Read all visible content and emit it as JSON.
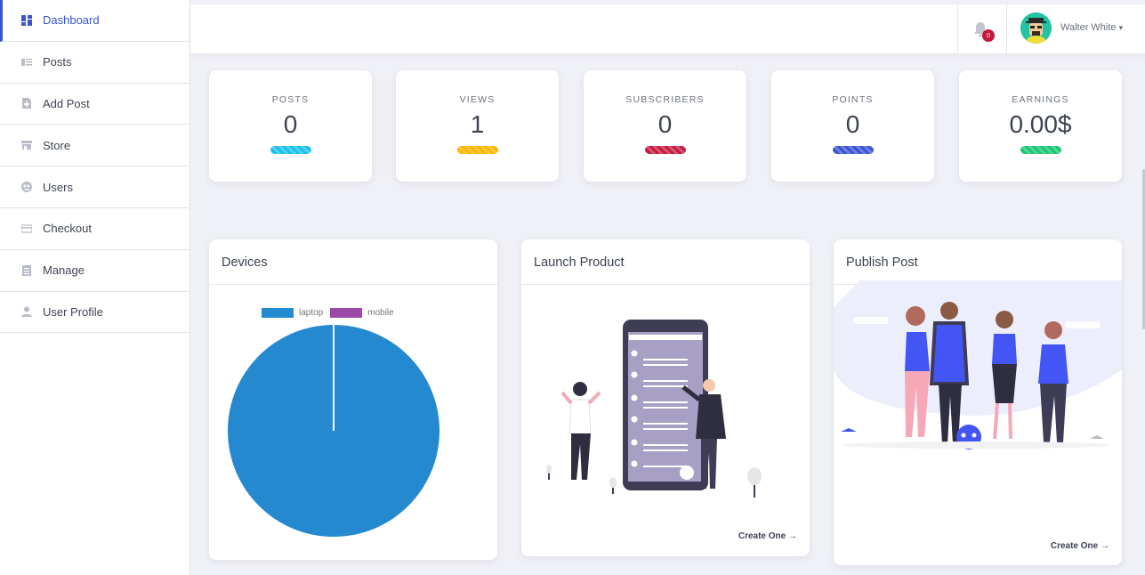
{
  "sidebar": {
    "items": [
      {
        "label": "Dashboard",
        "icon": "dashboard-icon",
        "active": true
      },
      {
        "label": "Posts",
        "icon": "posts-icon"
      },
      {
        "label": "Add Post",
        "icon": "add-post-icon"
      },
      {
        "label": "Store",
        "icon": "store-icon"
      },
      {
        "label": "Users",
        "icon": "users-icon"
      },
      {
        "label": "Checkout",
        "icon": "card-icon"
      },
      {
        "label": "Manage",
        "icon": "manage-icon"
      },
      {
        "label": "User Profile",
        "icon": "user-icon"
      }
    ]
  },
  "topbar": {
    "notification_count": "0",
    "user_name": "Walter White",
    "dropdown_caret": "▾"
  },
  "stats": [
    {
      "label": "POSTS",
      "value": "0",
      "color": "#17c1e8"
    },
    {
      "label": "VIEWS",
      "value": "1",
      "color": "#ffb400"
    },
    {
      "label": "SUBSCRIBERS",
      "value": "0",
      "color": "#c4183c"
    },
    {
      "label": "POINTS",
      "value": "0",
      "color": "#3a53d4"
    },
    {
      "label": "EARNINGS",
      "value": "0.00$",
      "color": "#17c671"
    }
  ],
  "panels": {
    "devices": {
      "title": "Devices"
    },
    "launch": {
      "title": "Launch Product",
      "link": "Create One →"
    },
    "publish": {
      "title": "Publish Post",
      "link": "Create One →"
    }
  },
  "chart_data": {
    "type": "pie",
    "categories": [
      "laptop",
      "mobile"
    ],
    "values": [
      1,
      0
    ],
    "colors": [
      "#2489cf",
      "#9b4aa8"
    ],
    "legend": "top"
  }
}
